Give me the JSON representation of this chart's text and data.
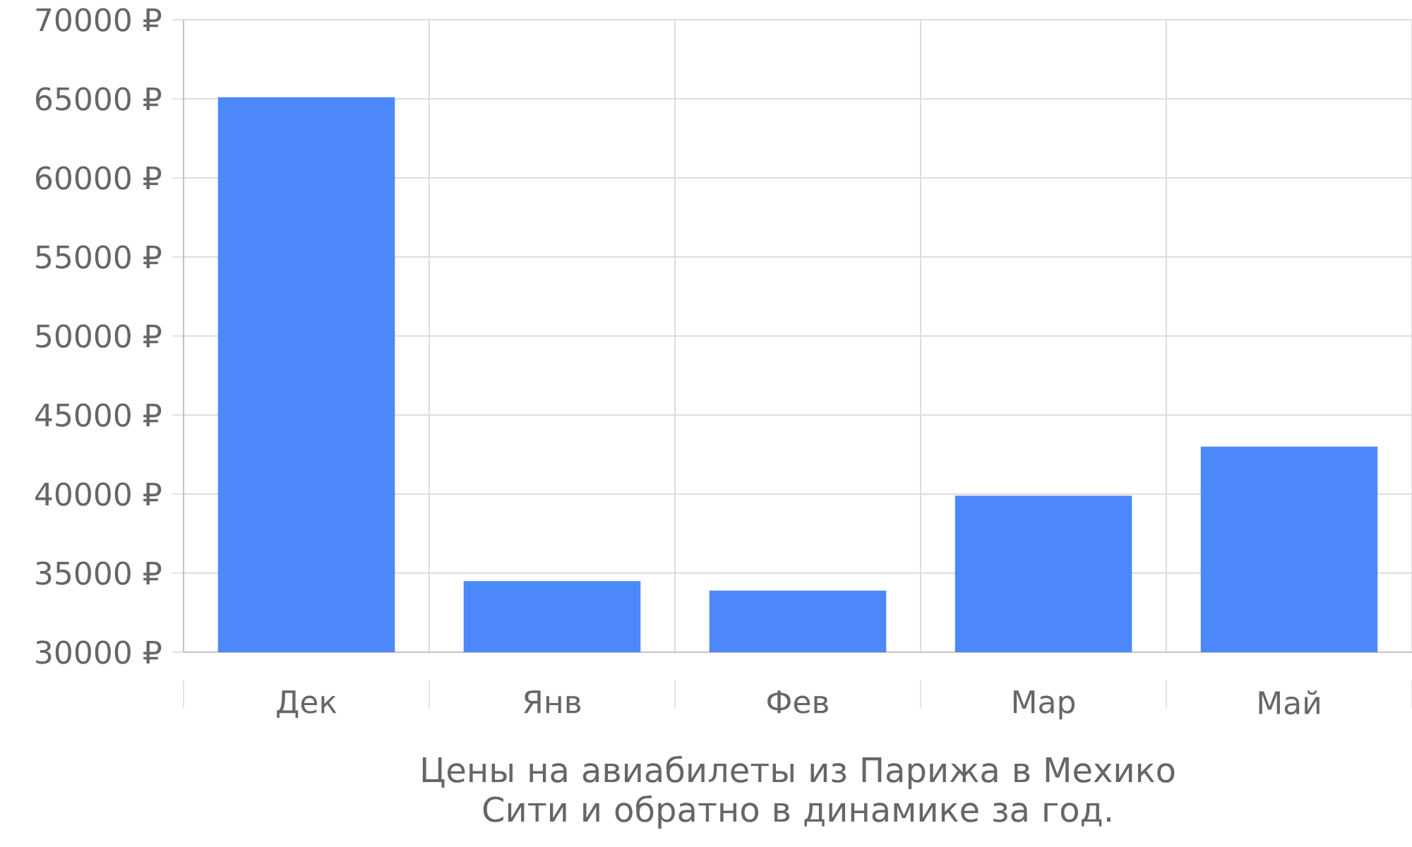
{
  "chart_data": {
    "type": "bar",
    "xlabel": "Цены на авиабилеты из Парижа в Мехико Сити и обратно в динамике за год.",
    "categories": [
      "Дек",
      "Янв",
      "Фев",
      "Мар",
      "Май"
    ],
    "values": [
      65100,
      34500,
      33900,
      39900,
      43000
    ],
    "color": "#4d88fa",
    "ylim": [
      30000,
      70000
    ],
    "yticks": [
      {
        "value": 30000,
        "label": "30000 ₽"
      },
      {
        "value": 35000,
        "label": "35000 ₽"
      },
      {
        "value": 40000,
        "label": "40000 ₽"
      },
      {
        "value": 45000,
        "label": "45000 ₽"
      },
      {
        "value": 50000,
        "label": "50000 ₽"
      },
      {
        "value": 55000,
        "label": "55000 ₽"
      },
      {
        "value": 60000,
        "label": "60000 ₽"
      },
      {
        "value": 65000,
        "label": "65000 ₽"
      },
      {
        "value": 70000,
        "label": "70000 ₽"
      }
    ],
    "grid": true
  }
}
